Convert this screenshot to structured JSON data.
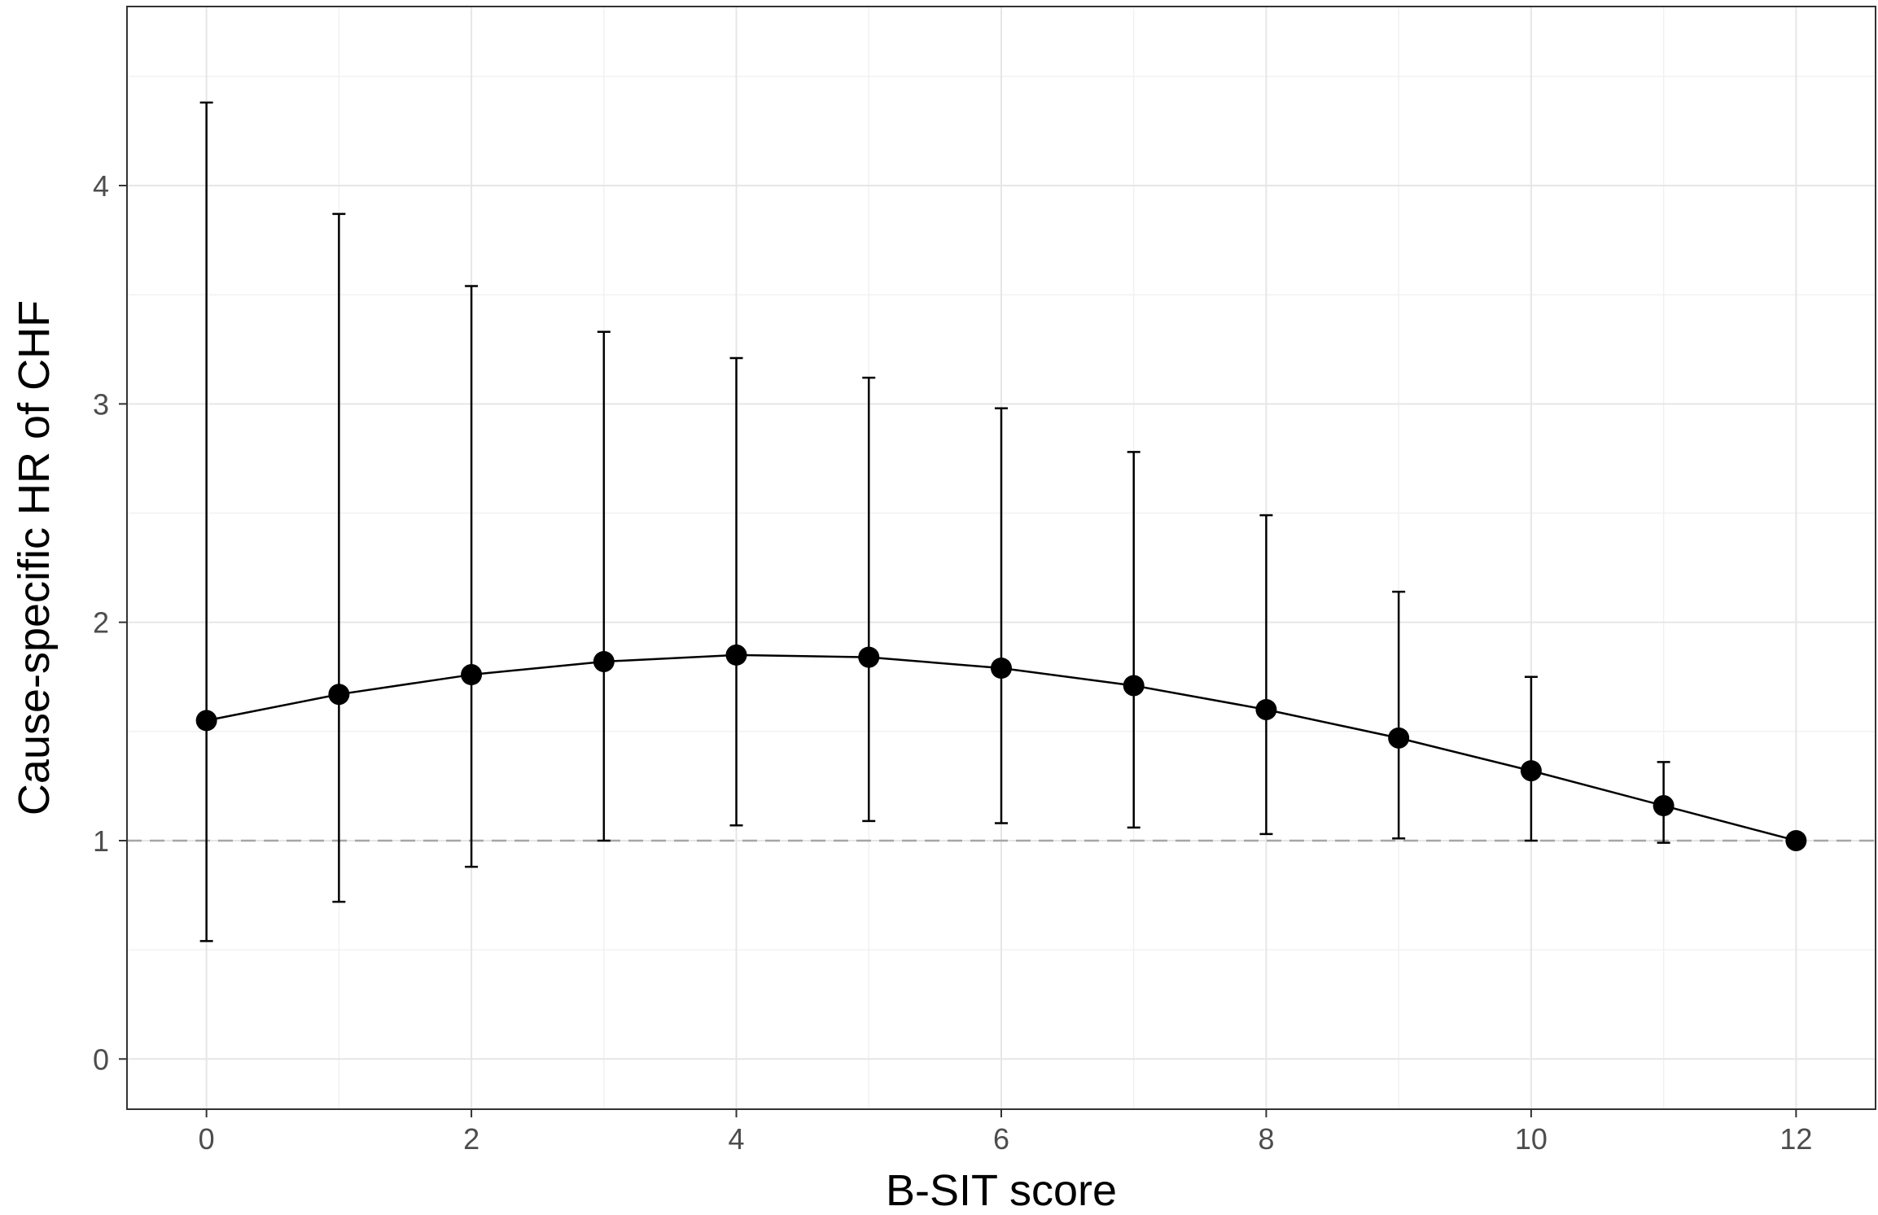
{
  "chart_data": {
    "type": "scatter",
    "xlabel": "B-SIT score",
    "ylabel": "Cause-specific HR of CHF",
    "xlim": [
      -0.6,
      12.6
    ],
    "ylim": [
      -0.23,
      4.82
    ],
    "x_ticks": [
      0,
      2,
      4,
      6,
      8,
      10,
      12
    ],
    "y_ticks": [
      0,
      1,
      2,
      3,
      4
    ],
    "grid": true,
    "reference_line": {
      "y": 1,
      "style": "dashed",
      "color": "#a6a6a6"
    },
    "series": [
      {
        "x": [
          0,
          1,
          2,
          3,
          4,
          5,
          6,
          7,
          8,
          9,
          10,
          11,
          12
        ],
        "y": [
          1.55,
          1.67,
          1.76,
          1.82,
          1.85,
          1.84,
          1.79,
          1.71,
          1.6,
          1.47,
          1.32,
          1.16,
          1.0
        ],
        "lower": [
          0.54,
          0.72,
          0.88,
          1.0,
          1.07,
          1.09,
          1.08,
          1.06,
          1.03,
          1.01,
          1.0,
          0.99,
          1.0
        ],
        "upper": [
          4.38,
          3.87,
          3.54,
          3.33,
          3.21,
          3.12,
          2.98,
          2.78,
          2.49,
          2.14,
          1.75,
          1.36,
          1.0
        ],
        "color": "#000000"
      }
    ]
  }
}
